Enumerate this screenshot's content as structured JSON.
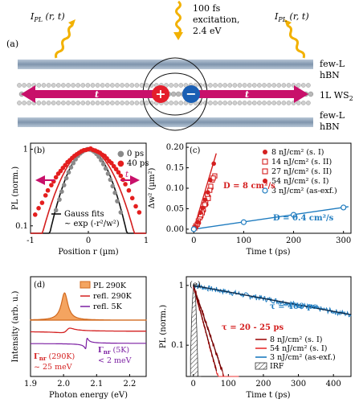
{
  "panel_a": {
    "label": "(a)",
    "ipl_left": "I",
    "ipl_sub": "PL",
    "ipl_args": " (r, t)",
    "excitation_lines": [
      "100 fs",
      "excitation,",
      "2.4 eV"
    ],
    "layer_top": [
      "few-L",
      "hBN"
    ],
    "layer_mid": "1L WS",
    "layer_mid_sub": "2",
    "layer_bot": [
      "few-L",
      "hBN"
    ],
    "arrow_label": "t",
    "plus": "+",
    "minus": "−",
    "colors": {
      "arrow": "#c8106a",
      "plus": "#e41e2b",
      "minus": "#1a5fb4",
      "hbn": "#8ba0b8",
      "wave": "#f2b100"
    }
  },
  "chart_data": [
    {
      "panel": "(b)",
      "type": "scatter",
      "ylabel": "PL (norm.)",
      "xlabel": "Position r (µm)",
      "xlim": [
        -1,
        1
      ],
      "ylim_log": [
        0.08,
        1.2
      ],
      "xticks": [
        "-1",
        "0",
        "1"
      ],
      "yticks": [
        "0.1",
        "1"
      ],
      "legend_position": "top-right",
      "series": [
        {
          "name": "0 ps",
          "color": "#8a8a8a",
          "x": [
            -0.56,
            -0.5,
            -0.46,
            -0.42,
            -0.38,
            -0.34,
            -0.3,
            -0.26,
            -0.22,
            -0.18,
            -0.14,
            -0.1,
            -0.06,
            -0.02,
            0.02,
            0.06,
            0.1,
            0.14,
            0.18,
            0.22,
            0.26,
            0.3,
            0.34,
            0.38,
            0.42,
            0.46,
            0.5,
            0.56
          ],
          "y": [
            0.16,
            0.22,
            0.28,
            0.34,
            0.42,
            0.5,
            0.58,
            0.66,
            0.74,
            0.82,
            0.88,
            0.93,
            0.97,
            1.0,
            0.99,
            0.97,
            0.93,
            0.87,
            0.8,
            0.72,
            0.64,
            0.56,
            0.48,
            0.4,
            0.33,
            0.27,
            0.21,
            0.15
          ]
        },
        {
          "name": "40 ps",
          "color": "#e41e1e",
          "x": [
            -0.92,
            -0.86,
            -0.8,
            -0.74,
            -0.7,
            -0.64,
            -0.6,
            -0.56,
            -0.52,
            -0.48,
            -0.44,
            -0.4,
            -0.36,
            -0.32,
            -0.28,
            -0.24,
            -0.2,
            -0.16,
            -0.12,
            -0.08,
            -0.04,
            0.0,
            0.04,
            0.08,
            0.12,
            0.16,
            0.2,
            0.24,
            0.28,
            0.32,
            0.36,
            0.4,
            0.44,
            0.48,
            0.52,
            0.56,
            0.6,
            0.64,
            0.7,
            0.76,
            0.82,
            0.88
          ],
          "y": [
            0.14,
            0.17,
            0.2,
            0.25,
            0.29,
            0.34,
            0.38,
            0.43,
            0.48,
            0.52,
            0.57,
            0.62,
            0.68,
            0.72,
            0.77,
            0.82,
            0.86,
            0.9,
            0.94,
            0.97,
            0.98,
            1.0,
            1.02,
            0.98,
            0.96,
            0.93,
            0.9,
            0.85,
            0.82,
            0.76,
            0.7,
            0.66,
            0.6,
            0.55,
            0.5,
            0.45,
            0.4,
            0.35,
            0.29,
            0.23,
            0.18,
            0.15
          ]
        }
      ],
      "fits": {
        "name": "Gauss fits",
        "formula": "~ exp (-r²/w²)",
        "w0": 0.42,
        "w40": 0.5
      },
      "t_label": "t"
    },
    {
      "panel": "(c)",
      "type": "scatter",
      "ylabel": "Δw² (µm²)",
      "xlabel": "Time t (ps)",
      "xlim": [
        -15,
        315
      ],
      "ylim": [
        -0.01,
        0.21
      ],
      "xticks": [
        0,
        100,
        200,
        300
      ],
      "yticks": [
        "0.00",
        "0.05",
        "0.10",
        "0.15",
        "0.20"
      ],
      "legend_position": "top-right",
      "series": [
        {
          "name": "8 nJ/cm² (s. I)",
          "color": "#d41f1f",
          "marker": "filled-circle",
          "x": [
            5,
            10,
            15,
            20,
            25,
            30,
            35,
            40
          ],
          "y": [
            0.005,
            0.015,
            0.03,
            0.045,
            0.06,
            0.08,
            0.1,
            0.16
          ]
        },
        {
          "name": "14 nJ/cm² (s. II)",
          "color": "#d41f1f",
          "marker": "open-square",
          "x": [
            2,
            7,
            12,
            17,
            22,
            27,
            32,
            37,
            42
          ],
          "y": [
            0.003,
            0.012,
            0.028,
            0.04,
            0.06,
            0.085,
            0.095,
            0.12,
            0.13
          ]
        },
        {
          "name": "27 nJ/cm² (s. II)",
          "color": "#d41f1f",
          "marker": "open-square",
          "x": [
            4,
            9,
            14,
            19,
            24,
            29,
            34,
            39
          ],
          "y": [
            0.008,
            0.02,
            0.035,
            0.05,
            0.07,
            0.075,
            0.105,
            0.125
          ]
        },
        {
          "name": "54 nJ/cm² (s. I)",
          "color": "#d41f1f",
          "marker": "filled-circle",
          "x": [
            3,
            8,
            13,
            18,
            23,
            28,
            33
          ],
          "y": [
            0.006,
            0.018,
            0.04,
            0.052,
            0.072,
            0.09,
            0.12
          ]
        },
        {
          "name": "3 nJ/cm² (as-exf.)",
          "color": "#1e7bbf",
          "marker": "open-circle",
          "x": [
            0,
            100,
            200,
            300
          ],
          "y": [
            0.0,
            0.017,
            0.035,
            0.053
          ]
        }
      ],
      "annotations": [
        "D = 8 cm²/s",
        "D = 0.4 cm²/s"
      ]
    },
    {
      "panel": "(d)",
      "type": "line",
      "ylabel": "Intensity (arb. u.)",
      "xlabel": "Photon energy (eV)",
      "xlim": [
        1.9,
        2.25
      ],
      "xticks": [
        "1.9",
        "2.0",
        "2.1",
        "2.2"
      ],
      "legend_position": "top-right",
      "series": [
        {
          "name": "PL 290K",
          "color": "#f4a460"
        },
        {
          "name": "refl. 290K",
          "color": "#d42020"
        },
        {
          "name": "refl. 5K",
          "color": "#7b1fa2"
        }
      ],
      "annotations": [
        {
          "text": "Γ",
          "sub": "nr",
          "rest": " (290K)",
          "line2": "~ 25 meV",
          "color": "#d42020"
        },
        {
          "text": "Γ",
          "sub": "nr",
          "rest": " (5K)",
          "line2": "< 2 meV",
          "color": "#7b1fa2"
        }
      ]
    },
    {
      "panel": "(e)",
      "type": "line",
      "ylabel": "PL (norm.)",
      "xlabel": "Time t (ps)",
      "xlim": [
        -20,
        450
      ],
      "ylim_log": [
        0.03,
        1.4
      ],
      "xticks": [
        0,
        100,
        200,
        300,
        400
      ],
      "yticks": [
        "0.1",
        "1"
      ],
      "legend_position": "bottom-right",
      "series": [
        {
          "name": "8 nJ/cm² (s. I)",
          "color": "#a01010",
          "tau": 25
        },
        {
          "name": "54 nJ/cm² (s. I)",
          "color": "#e83030",
          "tau": 20
        },
        {
          "name": "3 nJ/cm² (as-exf.)",
          "color": "#1e7bbf",
          "tau": 400
        },
        {
          "name": "IRF",
          "color": "#444444"
        }
      ],
      "annotations": [
        "τ = 400 ps",
        "τ = 20 - 25 ps"
      ]
    }
  ]
}
